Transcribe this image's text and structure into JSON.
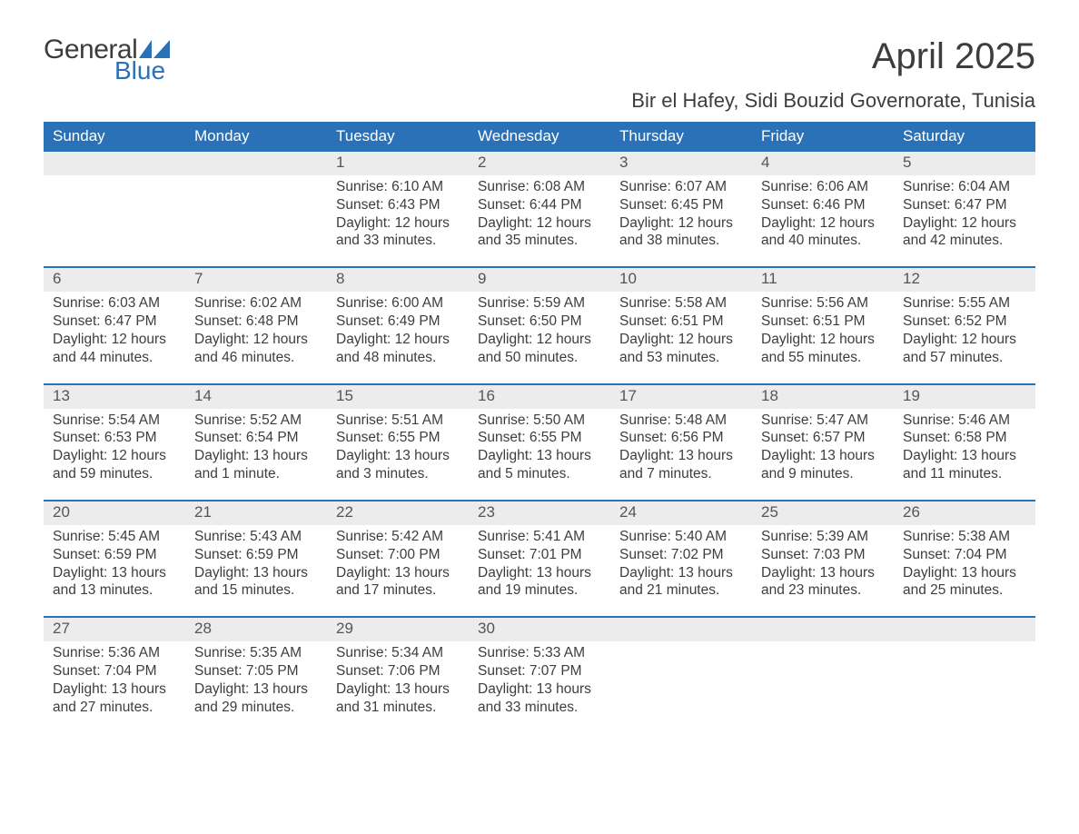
{
  "logo": {
    "general": "General",
    "blue": "Blue",
    "flag_color": "#2b71b8"
  },
  "title": "April 2025",
  "location": "Bir el Hafey, Sidi Bouzid Governorate, Tunisia",
  "colors": {
    "header_bg": "#2b71b8",
    "header_text": "#ffffff",
    "strip_bg": "#ececec",
    "divider": "#2b71b8",
    "body_text": "#3d3d3d",
    "daynum_text": "#555555",
    "page_bg": "#ffffff"
  },
  "day_headers": [
    "Sunday",
    "Monday",
    "Tuesday",
    "Wednesday",
    "Thursday",
    "Friday",
    "Saturday"
  ],
  "weeks": [
    [
      {
        "n": "",
        "sunrise": "",
        "sunset": "",
        "daylight": ""
      },
      {
        "n": "",
        "sunrise": "",
        "sunset": "",
        "daylight": ""
      },
      {
        "n": "1",
        "sunrise": "Sunrise: 6:10 AM",
        "sunset": "Sunset: 6:43 PM",
        "daylight": "Daylight: 12 hours and 33 minutes."
      },
      {
        "n": "2",
        "sunrise": "Sunrise: 6:08 AM",
        "sunset": "Sunset: 6:44 PM",
        "daylight": "Daylight: 12 hours and 35 minutes."
      },
      {
        "n": "3",
        "sunrise": "Sunrise: 6:07 AM",
        "sunset": "Sunset: 6:45 PM",
        "daylight": "Daylight: 12 hours and 38 minutes."
      },
      {
        "n": "4",
        "sunrise": "Sunrise: 6:06 AM",
        "sunset": "Sunset: 6:46 PM",
        "daylight": "Daylight: 12 hours and 40 minutes."
      },
      {
        "n": "5",
        "sunrise": "Sunrise: 6:04 AM",
        "sunset": "Sunset: 6:47 PM",
        "daylight": "Daylight: 12 hours and 42 minutes."
      }
    ],
    [
      {
        "n": "6",
        "sunrise": "Sunrise: 6:03 AM",
        "sunset": "Sunset: 6:47 PM",
        "daylight": "Daylight: 12 hours and 44 minutes."
      },
      {
        "n": "7",
        "sunrise": "Sunrise: 6:02 AM",
        "sunset": "Sunset: 6:48 PM",
        "daylight": "Daylight: 12 hours and 46 minutes."
      },
      {
        "n": "8",
        "sunrise": "Sunrise: 6:00 AM",
        "sunset": "Sunset: 6:49 PM",
        "daylight": "Daylight: 12 hours and 48 minutes."
      },
      {
        "n": "9",
        "sunrise": "Sunrise: 5:59 AM",
        "sunset": "Sunset: 6:50 PM",
        "daylight": "Daylight: 12 hours and 50 minutes."
      },
      {
        "n": "10",
        "sunrise": "Sunrise: 5:58 AM",
        "sunset": "Sunset: 6:51 PM",
        "daylight": "Daylight: 12 hours and 53 minutes."
      },
      {
        "n": "11",
        "sunrise": "Sunrise: 5:56 AM",
        "sunset": "Sunset: 6:51 PM",
        "daylight": "Daylight: 12 hours and 55 minutes."
      },
      {
        "n": "12",
        "sunrise": "Sunrise: 5:55 AM",
        "sunset": "Sunset: 6:52 PM",
        "daylight": "Daylight: 12 hours and 57 minutes."
      }
    ],
    [
      {
        "n": "13",
        "sunrise": "Sunrise: 5:54 AM",
        "sunset": "Sunset: 6:53 PM",
        "daylight": "Daylight: 12 hours and 59 minutes."
      },
      {
        "n": "14",
        "sunrise": "Sunrise: 5:52 AM",
        "sunset": "Sunset: 6:54 PM",
        "daylight": "Daylight: 13 hours and 1 minute."
      },
      {
        "n": "15",
        "sunrise": "Sunrise: 5:51 AM",
        "sunset": "Sunset: 6:55 PM",
        "daylight": "Daylight: 13 hours and 3 minutes."
      },
      {
        "n": "16",
        "sunrise": "Sunrise: 5:50 AM",
        "sunset": "Sunset: 6:55 PM",
        "daylight": "Daylight: 13 hours and 5 minutes."
      },
      {
        "n": "17",
        "sunrise": "Sunrise: 5:48 AM",
        "sunset": "Sunset: 6:56 PM",
        "daylight": "Daylight: 13 hours and 7 minutes."
      },
      {
        "n": "18",
        "sunrise": "Sunrise: 5:47 AM",
        "sunset": "Sunset: 6:57 PM",
        "daylight": "Daylight: 13 hours and 9 minutes."
      },
      {
        "n": "19",
        "sunrise": "Sunrise: 5:46 AM",
        "sunset": "Sunset: 6:58 PM",
        "daylight": "Daylight: 13 hours and 11 minutes."
      }
    ],
    [
      {
        "n": "20",
        "sunrise": "Sunrise: 5:45 AM",
        "sunset": "Sunset: 6:59 PM",
        "daylight": "Daylight: 13 hours and 13 minutes."
      },
      {
        "n": "21",
        "sunrise": "Sunrise: 5:43 AM",
        "sunset": "Sunset: 6:59 PM",
        "daylight": "Daylight: 13 hours and 15 minutes."
      },
      {
        "n": "22",
        "sunrise": "Sunrise: 5:42 AM",
        "sunset": "Sunset: 7:00 PM",
        "daylight": "Daylight: 13 hours and 17 minutes."
      },
      {
        "n": "23",
        "sunrise": "Sunrise: 5:41 AM",
        "sunset": "Sunset: 7:01 PM",
        "daylight": "Daylight: 13 hours and 19 minutes."
      },
      {
        "n": "24",
        "sunrise": "Sunrise: 5:40 AM",
        "sunset": "Sunset: 7:02 PM",
        "daylight": "Daylight: 13 hours and 21 minutes."
      },
      {
        "n": "25",
        "sunrise": "Sunrise: 5:39 AM",
        "sunset": "Sunset: 7:03 PM",
        "daylight": "Daylight: 13 hours and 23 minutes."
      },
      {
        "n": "26",
        "sunrise": "Sunrise: 5:38 AM",
        "sunset": "Sunset: 7:04 PM",
        "daylight": "Daylight: 13 hours and 25 minutes."
      }
    ],
    [
      {
        "n": "27",
        "sunrise": "Sunrise: 5:36 AM",
        "sunset": "Sunset: 7:04 PM",
        "daylight": "Daylight: 13 hours and 27 minutes."
      },
      {
        "n": "28",
        "sunrise": "Sunrise: 5:35 AM",
        "sunset": "Sunset: 7:05 PM",
        "daylight": "Daylight: 13 hours and 29 minutes."
      },
      {
        "n": "29",
        "sunrise": "Sunrise: 5:34 AM",
        "sunset": "Sunset: 7:06 PM",
        "daylight": "Daylight: 13 hours and 31 minutes."
      },
      {
        "n": "30",
        "sunrise": "Sunrise: 5:33 AM",
        "sunset": "Sunset: 7:07 PM",
        "daylight": "Daylight: 13 hours and 33 minutes."
      },
      {
        "n": "",
        "sunrise": "",
        "sunset": "",
        "daylight": ""
      },
      {
        "n": "",
        "sunrise": "",
        "sunset": "",
        "daylight": ""
      },
      {
        "n": "",
        "sunrise": "",
        "sunset": "",
        "daylight": ""
      }
    ]
  ]
}
